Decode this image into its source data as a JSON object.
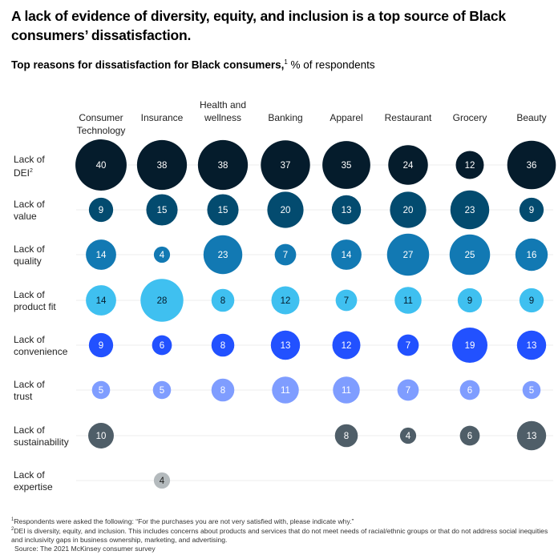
{
  "title": "A lack of evidence of diversity, equity, and inclusion is a top source of Black consumers’ dissatisfaction.",
  "subtitle": {
    "bold": "Top reasons for dissatisfaction for Black consumers,",
    "sup": "1",
    "rest": " % of respondents"
  },
  "chart_data": {
    "type": "bubble-matrix",
    "unit": "% of respondents",
    "columns": [
      "Consumer\nTechnology",
      "Insurance",
      "Health and\nwellness",
      "Banking",
      "Apparel",
      "Restaurant",
      "Grocery",
      "Beauty"
    ],
    "rows": [
      {
        "label": "Lack of\nDEI",
        "sup": "2",
        "color": "#051c2c",
        "text_color": "#ffffff",
        "values": [
          40,
          38,
          38,
          37,
          35,
          24,
          12,
          36
        ]
      },
      {
        "label": "Lack of\nvalue",
        "color": "#034b6f",
        "text_color": "#ffffff",
        "values": [
          9,
          15,
          15,
          20,
          13,
          20,
          23,
          9
        ]
      },
      {
        "label": "Lack of\nquality",
        "color": "#1279b3",
        "text_color": "#ffffff",
        "values": [
          14,
          4,
          23,
          7,
          14,
          27,
          25,
          16
        ]
      },
      {
        "label": "Lack of\nproduct fit",
        "color": "#3fc0f0",
        "text_color": "#051c2c",
        "values": [
          14,
          28,
          8,
          12,
          7,
          11,
          9,
          9
        ]
      },
      {
        "label": "Lack of\nconvenience",
        "color": "#2251ff",
        "text_color": "#ffffff",
        "values": [
          9,
          6,
          8,
          13,
          12,
          7,
          19,
          13
        ]
      },
      {
        "label": "Lack of\ntrust",
        "color": "#7f9dff",
        "text_color": "#ffffff",
        "values": [
          5,
          5,
          8,
          11,
          11,
          7,
          6,
          5
        ]
      },
      {
        "label": "Lack of\nsustainability",
        "color": "#4f5e68",
        "text_color": "#ffffff",
        "values": [
          10,
          null,
          null,
          null,
          8,
          4,
          6,
          13
        ]
      },
      {
        "label": "Lack of\nexpertise",
        "color": "#b4babd",
        "text_color": "#222222",
        "values": [
          null,
          4,
          null,
          null,
          null,
          null,
          null,
          null
        ]
      }
    ]
  },
  "footnotes": {
    "n1_sup": "1",
    "n1": "Respondents were asked the following: “For the purchases you are not very satisfied with, please indicate why.”",
    "n2_sup": "2",
    "n2": "DEI is diversity, equity, and inclusion. This includes concerns about products and services that do not meet needs of racial/ethnic groups or that do not address social inequities and inclusivity gaps in business ownership, marketing, and advertising.",
    "source": "Source: The 2021 McKinsey consumer survey"
  }
}
